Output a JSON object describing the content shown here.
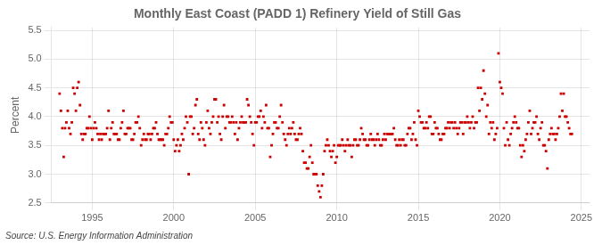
{
  "chart_data": {
    "type": "scatter",
    "title": "Monthly East Coast (PADD 1) Refinery Yield of Still Gas",
    "ylabel": "Percent",
    "annotations": [
      "Source: U.S. Energy Information Administration"
    ],
    "color": "#CC0000",
    "marker": "square",
    "grid": true,
    "xlim": [
      1992.5,
      2025.5
    ],
    "ylim": [
      2.5,
      5.55
    ],
    "xticks": [
      1995,
      2000,
      2005,
      2010,
      2015,
      2020,
      2025
    ],
    "yticks": [
      2.5,
      {
        "value": 3.0,
        "label": "3.0"
      },
      3.5,
      {
        "value": 4.0,
        "label": "4.0"
      },
      4.5,
      {
        "value": 5.0,
        "label": "5.0"
      },
      5.5
    ],
    "x": [
      1993.0,
      1993.083,
      1993.167,
      1993.25,
      1993.333,
      1993.417,
      1993.5,
      1993.583,
      1993.667,
      1993.75,
      1993.833,
      1993.917,
      1994.0,
      1994.083,
      1994.167,
      1994.25,
      1994.333,
      1994.417,
      1994.5,
      1994.583,
      1994.667,
      1994.75,
      1994.833,
      1994.917,
      1995.0,
      1995.083,
      1995.167,
      1995.25,
      1995.333,
      1995.417,
      1995.5,
      1995.583,
      1995.667,
      1995.75,
      1995.833,
      1995.917,
      1996.0,
      1996.083,
      1996.167,
      1996.25,
      1996.333,
      1996.417,
      1996.5,
      1996.583,
      1996.667,
      1996.75,
      1996.833,
      1996.917,
      1997.0,
      1997.083,
      1997.167,
      1997.25,
      1997.333,
      1997.417,
      1997.5,
      1997.583,
      1997.667,
      1997.75,
      1997.833,
      1997.917,
      1998.0,
      1998.083,
      1998.167,
      1998.25,
      1998.333,
      1998.417,
      1998.5,
      1998.583,
      1998.667,
      1998.75,
      1998.833,
      1998.917,
      1999.0,
      1999.083,
      1999.167,
      1999.25,
      1999.333,
      1999.417,
      1999.5,
      1999.583,
      1999.667,
      1999.75,
      1999.833,
      1999.917,
      2000.0,
      2000.083,
      2000.167,
      2000.25,
      2000.333,
      2000.417,
      2000.5,
      2000.583,
      2000.667,
      2000.75,
      2000.833,
      2000.917,
      2001.0,
      2001.083,
      2001.167,
      2001.25,
      2001.333,
      2001.417,
      2001.5,
      2001.583,
      2001.667,
      2001.75,
      2001.833,
      2001.917,
      2002.0,
      2002.083,
      2002.167,
      2002.25,
      2002.333,
      2002.417,
      2002.5,
      2002.583,
      2002.667,
      2002.75,
      2002.833,
      2002.917,
      2003.0,
      2003.083,
      2003.167,
      2003.25,
      2003.333,
      2003.417,
      2003.5,
      2003.583,
      2003.667,
      2003.75,
      2003.833,
      2003.917,
      2004.0,
      2004.083,
      2004.167,
      2004.25,
      2004.333,
      2004.417,
      2004.5,
      2004.583,
      2004.667,
      2004.75,
      2004.833,
      2004.917,
      2005.0,
      2005.083,
      2005.167,
      2005.25,
      2005.333,
      2005.417,
      2005.5,
      2005.583,
      2005.667,
      2005.75,
      2005.833,
      2005.917,
      2006.0,
      2006.083,
      2006.167,
      2006.25,
      2006.333,
      2006.417,
      2006.5,
      2006.583,
      2006.667,
      2006.75,
      2006.833,
      2006.917,
      2007.0,
      2007.083,
      2007.167,
      2007.25,
      2007.333,
      2007.417,
      2007.5,
      2007.583,
      2007.667,
      2007.75,
      2007.833,
      2007.917,
      2008.0,
      2008.083,
      2008.167,
      2008.25,
      2008.333,
      2008.417,
      2008.5,
      2008.583,
      2008.667,
      2008.75,
      2008.833,
      2008.917,
      2009.0,
      2009.083,
      2009.167,
      2009.25,
      2009.333,
      2009.417,
      2009.5,
      2009.583,
      2009.667,
      2009.75,
      2009.833,
      2009.917,
      2010.0,
      2010.083,
      2010.167,
      2010.25,
      2010.333,
      2010.417,
      2010.5,
      2010.583,
      2010.667,
      2010.75,
      2010.833,
      2010.917,
      2011.0,
      2011.083,
      2011.167,
      2011.25,
      2011.333,
      2011.417,
      2011.5,
      2011.583,
      2011.667,
      2011.75,
      2011.833,
      2011.917,
      2012.0,
      2012.083,
      2012.167,
      2012.25,
      2012.333,
      2012.417,
      2012.5,
      2012.583,
      2012.667,
      2012.75,
      2012.833,
      2012.917,
      2013.0,
      2013.083,
      2013.167,
      2013.25,
      2013.333,
      2013.417,
      2013.5,
      2013.583,
      2013.667,
      2013.75,
      2013.833,
      2013.917,
      2014.0,
      2014.083,
      2014.167,
      2014.25,
      2014.333,
      2014.417,
      2014.5,
      2014.583,
      2014.667,
      2014.75,
      2014.833,
      2014.917,
      2015.0,
      2015.083,
      2015.167,
      2015.25,
      2015.333,
      2015.417,
      2015.5,
      2015.583,
      2015.667,
      2015.75,
      2015.833,
      2015.917,
      2016.0,
      2016.083,
      2016.167,
      2016.25,
      2016.333,
      2016.417,
      2016.5,
      2016.583,
      2016.667,
      2016.75,
      2016.833,
      2016.917,
      2017.0,
      2017.083,
      2017.167,
      2017.25,
      2017.333,
      2017.417,
      2017.5,
      2017.583,
      2017.667,
      2017.75,
      2017.833,
      2017.917,
      2018.0,
      2018.083,
      2018.167,
      2018.25,
      2018.333,
      2018.417,
      2018.5,
      2018.583,
      2018.667,
      2018.75,
      2018.833,
      2018.917,
      2019.0,
      2019.083,
      2019.167,
      2019.25,
      2019.333,
      2019.417,
      2019.5,
      2019.583,
      2019.667,
      2019.75,
      2019.833,
      2019.917,
      2020.0,
      2020.083,
      2020.167,
      2020.25,
      2020.333,
      2020.417,
      2020.5,
      2020.583,
      2020.667,
      2020.75,
      2020.833,
      2020.917,
      2021.0,
      2021.083,
      2021.167,
      2021.25,
      2021.333,
      2021.417,
      2021.5,
      2021.583,
      2021.667,
      2021.75,
      2021.833,
      2021.917,
      2022.0,
      2022.083,
      2022.167,
      2022.25,
      2022.333,
      2022.417,
      2022.5,
      2022.583,
      2022.667,
      2022.75,
      2022.833,
      2022.917,
      2023.0,
      2023.083,
      2023.167,
      2023.25,
      2023.333,
      2023.417,
      2023.5,
      2023.583,
      2023.667,
      2023.75,
      2023.833,
      2023.917,
      2024.0,
      2024.083,
      2024.167,
      2024.25,
      2024.333,
      2024.417
    ],
    "values": [
      4.4,
      4.1,
      3.8,
      3.3,
      3.8,
      3.9,
      4.1,
      3.8,
      3.7,
      3.9,
      4.5,
      4.4,
      4.1,
      4.5,
      4.6,
      4.2,
      3.7,
      3.6,
      3.7,
      3.7,
      3.8,
      3.8,
      4.0,
      3.8,
      3.6,
      3.8,
      3.9,
      3.8,
      3.7,
      3.6,
      3.7,
      3.6,
      3.7,
      3.7,
      3.7,
      3.8,
      4.1,
      3.6,
      3.8,
      3.9,
      3.7,
      3.7,
      3.7,
      3.6,
      3.6,
      3.8,
      3.9,
      4.1,
      3.7,
      3.7,
      3.8,
      3.8,
      3.8,
      3.6,
      3.6,
      3.7,
      3.9,
      3.9,
      4.0,
      3.8,
      3.5,
      3.6,
      3.7,
      3.6,
      3.6,
      3.7,
      3.7,
      3.6,
      3.7,
      3.8,
      3.8,
      3.9,
      3.7,
      3.6,
      3.6,
      3.6,
      3.6,
      3.5,
      3.7,
      3.7,
      3.8,
      4.0,
      3.9,
      3.9,
      3.6,
      3.4,
      3.5,
      3.6,
      3.4,
      3.5,
      3.7,
      3.6,
      3.8,
      4.0,
      3.9,
      3.0,
      4.0,
      4.0,
      3.7,
      3.8,
      4.2,
      4.3,
      3.7,
      3.6,
      3.9,
      3.8,
      3.6,
      3.5,
      3.9,
      4.1,
      3.8,
      3.7,
      3.9,
      4.0,
      4.3,
      4.3,
      3.9,
      4.0,
      3.7,
      3.6,
      4.0,
      4.2,
      3.8,
      4.0,
      4.0,
      3.9,
      3.9,
      4.0,
      3.9,
      3.7,
      3.9,
      3.6,
      3.8,
      3.9,
      4.0,
      3.9,
      3.9,
      3.9,
      4.3,
      4.2,
      4.0,
      3.9,
      3.7,
      3.5,
      3.9,
      3.9,
      4.0,
      4.0,
      4.1,
      3.8,
      4.0,
      3.9,
      4.2,
      3.8,
      3.8,
      3.3,
      3.5,
      3.7,
      3.9,
      3.9,
      3.8,
      3.8,
      4.0,
      4.2,
      3.9,
      3.7,
      3.6,
      3.5,
      3.7,
      3.8,
      3.7,
      3.8,
      3.9,
      3.7,
      3.6,
      3.6,
      3.7,
      3.8,
      3.7,
      3.4,
      3.2,
      3.2,
      3.1,
      3.1,
      3.3,
      3.5,
      3.2,
      3.0,
      3.0,
      3.0,
      2.8,
      2.7,
      2.6,
      2.8,
      3.0,
      3.4,
      3.5,
      3.6,
      3.5,
      3.4,
      3.3,
      3.4,
      3.5,
      3.2,
      3.3,
      3.5,
      3.5,
      3.5,
      3.6,
      3.5,
      3.4,
      3.5,
      3.6,
      3.5,
      3.5,
      3.3,
      3.5,
      3.6,
      3.6,
      3.5,
      3.5,
      3.6,
      3.8,
      3.7,
      3.6,
      3.6,
      3.5,
      3.5,
      3.6,
      3.7,
      3.6,
      3.6,
      3.5,
      3.6,
      3.7,
      3.6,
      3.5,
      3.5,
      3.6,
      3.7,
      3.6,
      3.7,
      3.7,
      3.7,
      3.7,
      3.7,
      3.8,
      3.6,
      3.5,
      3.5,
      3.6,
      3.5,
      3.6,
      3.6,
      3.5,
      3.5,
      3.7,
      3.8,
      3.8,
      3.6,
      3.7,
      3.9,
      3.6,
      3.5,
      4.1,
      4.0,
      3.9,
      3.9,
      3.8,
      3.8,
      3.9,
      3.8,
      4.0,
      4.0,
      3.7,
      3.7,
      3.9,
      3.8,
      3.8,
      3.7,
      3.6,
      3.6,
      3.7,
      3.7,
      3.8,
      3.8,
      3.9,
      3.8,
      3.9,
      3.9,
      3.8,
      3.9,
      3.8,
      3.7,
      3.8,
      3.9,
      3.9,
      3.7,
      3.9,
      3.9,
      4.0,
      3.9,
      3.8,
      3.9,
      4.0,
      3.8,
      3.9,
      3.9,
      4.5,
      4.1,
      4.5,
      4.3,
      4.8,
      4.4,
      4.0,
      4.2,
      3.7,
      3.9,
      3.8,
      3.9,
      3.6,
      3.7,
      3.8,
      5.1,
      4.6,
      4.5,
      4.4,
      3.8,
      3.5,
      3.9,
      3.6,
      3.5,
      3.7,
      3.8,
      3.9,
      4.0,
      3.9,
      3.8,
      3.8,
      3.5,
      3.3,
      3.5,
      3.4,
      3.6,
      3.7,
      3.9,
      4.1,
      3.7,
      3.8,
      3.9,
      3.9,
      4.0,
      3.7,
      3.6,
      3.8,
      3.9,
      3.5,
      3.5,
      3.4,
      3.1,
      3.6,
      3.7,
      3.8,
      3.7,
      3.7,
      3.6,
      3.7,
      3.8,
      4.0,
      4.4,
      4.1,
      4.4,
      4.0,
      4.0,
      3.9,
      3.8,
      3.7,
      3.7
    ]
  }
}
